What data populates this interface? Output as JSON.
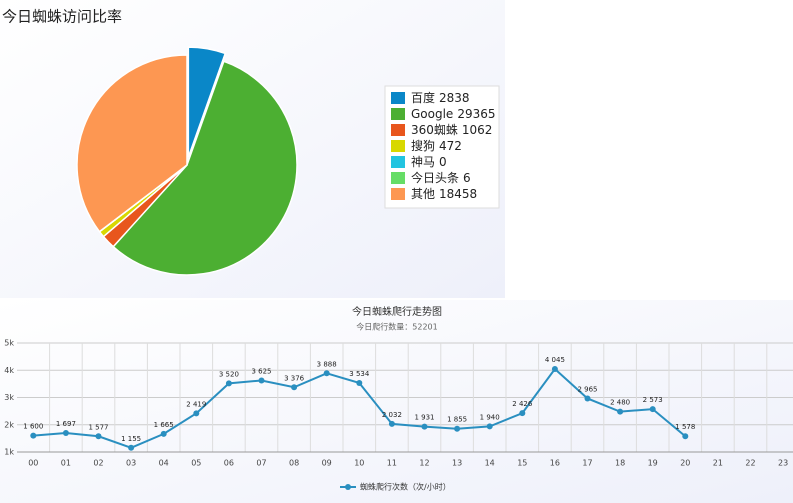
{
  "chart_data": [
    {
      "type": "pie",
      "title": "今日蜘蛛访问比率",
      "categories": [
        "百度",
        "Google",
        "360蜘蛛",
        "搜狗",
        "神马",
        "今日头条",
        "其他"
      ],
      "values": [
        2838,
        29365,
        1062,
        472,
        0,
        6,
        18458
      ],
      "colors": [
        "#0a87c8",
        "#4caf32",
        "#e8561d",
        "#d8d800",
        "#22c4e0",
        "#66dd66",
        "#fd9752"
      ],
      "legend": "right"
    },
    {
      "type": "line",
      "title": "今日蜘蛛爬行走势图",
      "subtitle": "今日爬行数量：52201",
      "categories": [
        "00",
        "01",
        "02",
        "03",
        "04",
        "05",
        "06",
        "07",
        "08",
        "09",
        "10",
        "11",
        "12",
        "13",
        "14",
        "15",
        "16",
        "17",
        "18",
        "19",
        "20",
        "21",
        "22",
        "23"
      ],
      "series": [
        {
          "name": "蜘蛛爬行次数（次/小时）",
          "color": "#2a8fc0",
          "values": [
            1600,
            1697,
            1577,
            1155,
            1665,
            2419,
            3520,
            3625,
            3376,
            3888,
            3534,
            2032,
            1931,
            1855,
            1940,
            2426,
            4045,
            2965,
            2480,
            2573,
            1578,
            null,
            null,
            null
          ],
          "value_labels": [
            "1 600",
            "1 697",
            "1 577",
            "1 155",
            "1 665",
            "2 419",
            "3 520",
            "3 625",
            "3 376",
            "3 888",
            "3 534",
            "2 032",
            "1 931",
            "1 855",
            "1 940",
            "2 426",
            "4 045",
            "2 965",
            "2 480",
            "2 573",
            "1 578",
            null,
            null,
            null
          ]
        }
      ],
      "ylim": [
        1000,
        5000
      ],
      "yticks": [
        {
          "value": 1000,
          "label": "1k"
        },
        {
          "value": 2000,
          "label": "2k"
        },
        {
          "value": 3000,
          "label": "3k"
        },
        {
          "value": 4000,
          "label": "4k"
        },
        {
          "value": 5000,
          "label": "5k"
        }
      ],
      "grid": true,
      "legend": "bottom"
    }
  ]
}
